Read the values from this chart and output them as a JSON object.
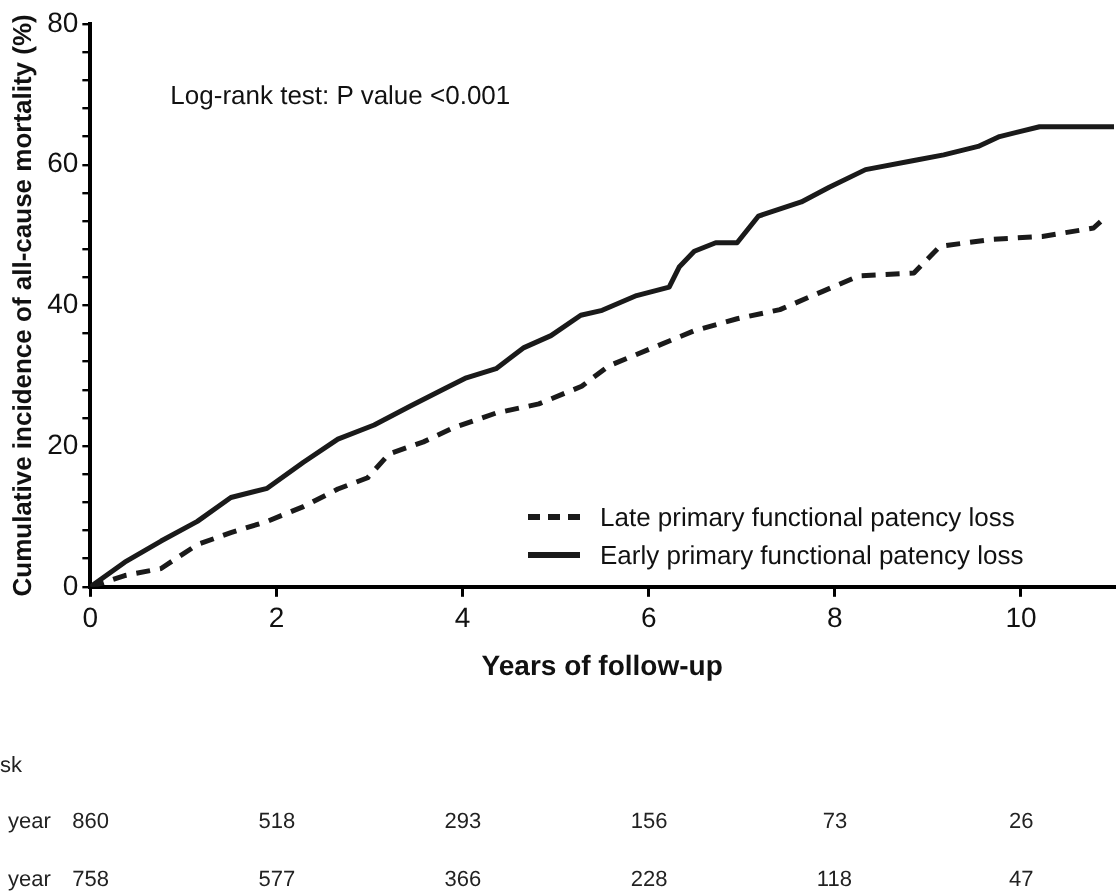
{
  "chart_data": {
    "type": "line",
    "xlabel": "Years of follow-up",
    "ylabel": "Cumulative incidence of all-cause mortality (%)",
    "xlim": [
      0,
      11
    ],
    "xticks": [
      0,
      2,
      4,
      6,
      8,
      10
    ],
    "ylim": [
      0,
      80
    ],
    "yticks": [
      0,
      {
        "value": 4,
        "label": null
      },
      {
        "value": 8,
        "label": null
      },
      {
        "value": 12,
        "label": null
      },
      {
        "value": 16,
        "label": null
      },
      20,
      {
        "value": 24,
        "label": null
      },
      {
        "value": 28,
        "label": null
      },
      {
        "value": 32,
        "label": null
      },
      {
        "value": 36,
        "label": null
      },
      40,
      {
        "value": 44,
        "label": null
      },
      {
        "value": 48,
        "label": null
      },
      {
        "value": 52,
        "label": null
      },
      {
        "value": 56,
        "label": null
      },
      60,
      {
        "value": 64,
        "label": null
      },
      {
        "value": 68,
        "label": null
      },
      {
        "value": 72,
        "label": null
      },
      {
        "value": 76,
        "label": null
      },
      80
    ],
    "grid": false,
    "legend": "bottom right",
    "marker": "none",
    "annotations": [
      "Log-rank test: P value <0.001",
      "sk",
      "year",
      "860",
      "518",
      "293",
      "156",
      "73",
      "26",
      "year",
      "758",
      "577",
      "366",
      "228",
      "118",
      "47"
    ],
    "series": [
      {
        "name": "Late primary functional patency loss",
        "color": "#1a1a1a",
        "line_style": "dashed",
        "x": [
          0,
          0.14,
          0.37,
          0.76,
          1.15,
          1.51,
          1.9,
          2.29,
          2.66,
          2.98,
          3.21,
          3.58,
          3.9,
          4.36,
          4.82,
          5.28,
          5.57,
          6.03,
          6.49,
          6.95,
          7.41,
          7.87,
          8.26,
          8.85,
          9.13,
          9.7,
          10.23,
          10.78,
          10.92
        ],
        "values": [
          0,
          0.6,
          1.6,
          2.6,
          6,
          7.7,
          9.3,
          11.4,
          13.9,
          15.5,
          18.9,
          20.6,
          22.6,
          24.7,
          26,
          28.5,
          31.4,
          33.9,
          36.4,
          38.1,
          39.4,
          42,
          44.2,
          44.6,
          48.4,
          49.4,
          49.8,
          51,
          52.7
        ]
      },
      {
        "name": "Early primary functional patency loss",
        "color": "#1a1a1a",
        "line_style": "solid",
        "x": [
          0,
          0.37,
          0.76,
          1.15,
          1.51,
          1.9,
          2.29,
          2.66,
          3.05,
          3.44,
          3.81,
          4.04,
          4.36,
          4.66,
          4.95,
          5.27,
          5.5,
          5.87,
          6.22,
          6.33,
          6.49,
          6.72,
          6.95,
          7.18,
          7.64,
          7.94,
          8.33,
          8.85,
          9.17,
          9.54,
          9.77,
          10.2,
          11
        ],
        "values": [
          0,
          3.5,
          6.5,
          9.3,
          12.7,
          14,
          17.7,
          21,
          23,
          25.7,
          28.2,
          29.7,
          31,
          34,
          35.7,
          38.6,
          39.3,
          41.4,
          42.6,
          45.5,
          47.7,
          48.9,
          48.9,
          52.7,
          54.7,
          56.8,
          59.3,
          60.6,
          61.4,
          62.6,
          64,
          65.4,
          65.4
        ]
      }
    ]
  }
}
